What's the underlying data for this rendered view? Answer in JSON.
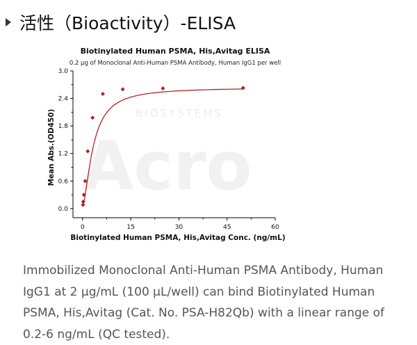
{
  "heading": "活性（Bioactivity）-ELISA",
  "watermark": {
    "word": "Acro",
    "sub": "BIOSYSTEMS"
  },
  "chart_data": {
    "type": "scatter",
    "title": "Biotinylated Human PSMA, His,Avitag ELISA",
    "subtitle": "0.2 µg of Monoclonal Anti-Human PSMA Antibody, Human IgG1 per well",
    "xlabel": "Biotinylated Human PSMA, His,Avitag Conc. (ng/mL)",
    "ylabel": "Mean Abs.(OD450)",
    "xlim": [
      -3,
      60
    ],
    "ylim": [
      -0.2,
      3.0
    ],
    "xticks": [
      0,
      15,
      30,
      45,
      60
    ],
    "yticks": [
      0.0,
      0.6,
      1.2,
      1.8,
      2.4,
      3.0
    ],
    "xtick_labels": [
      "0",
      "15",
      "30",
      "45",
      "60"
    ],
    "ytick_labels": [
      "0.0",
      "0.6",
      "1.2",
      "1.8",
      "2.4",
      "3.0"
    ],
    "grid": false,
    "color": "#b22222",
    "series": [
      {
        "x": [
          0.1,
          0.2,
          0.4,
          0.8,
          1.6,
          3.1,
          6.3,
          12.5,
          25,
          50
        ],
        "y": [
          0.08,
          0.15,
          0.3,
          0.6,
          1.25,
          1.98,
          2.5,
          2.6,
          2.62,
          2.63
        ]
      }
    ],
    "fit": {
      "model": "4PL",
      "bottom": 0.05,
      "top": 2.64,
      "ec50": 3.3,
      "hill": 1.6
    }
  },
  "description": "Immobilized Monoclonal Anti-Human PSMA Antibody, Human IgG1 at 2 µg/mL (100 µL/well) can bind Biotinylated Human PSMA, His,Avitag (Cat. No. PSA-H82Qb) with a linear range of 0.2-6 ng/mL (QC tested)."
}
